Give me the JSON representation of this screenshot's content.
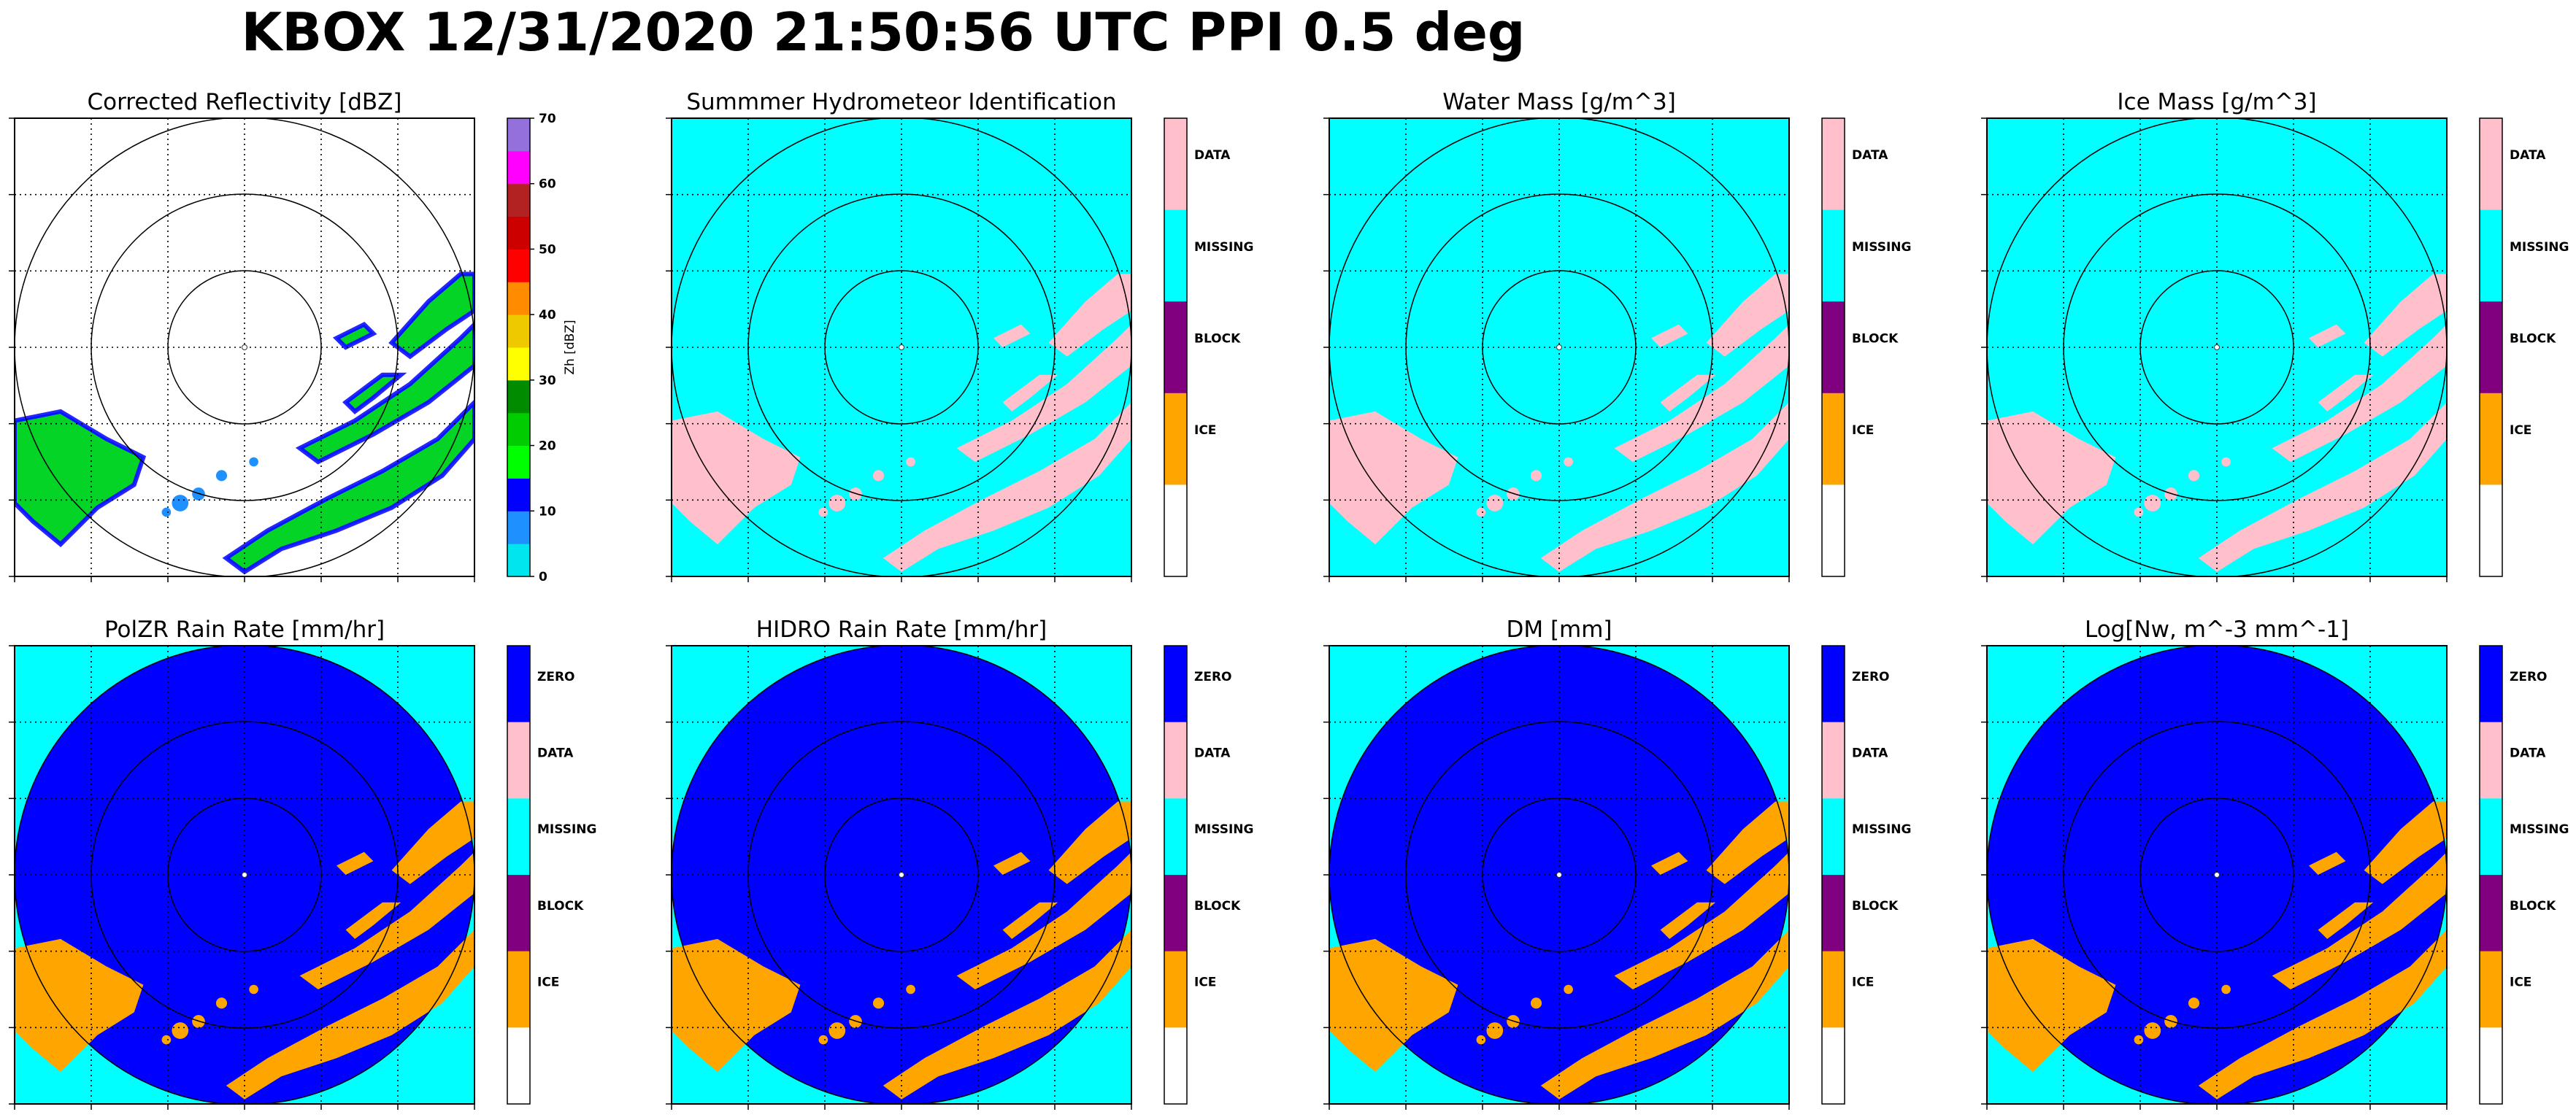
{
  "title": "KBOX 12/31/2020 21:50:56 UTC PPI 0.5 deg",
  "colors": {
    "missing": "#00ffff",
    "data": "#ffc0cb",
    "block": "#800080",
    "ice": "#ffa500",
    "zero": "#0000ff",
    "white": "#ffffff"
  },
  "chart_data": [
    {
      "type": "heatmap",
      "panel": "reflectivity",
      "title": "Corrected Reflectivity [dBZ]",
      "colorbar": {
        "kind": "continuous",
        "ylabel": "Zh [dBZ]",
        "ticks": [
          "0",
          "10",
          "20",
          "30",
          "40",
          "50",
          "60",
          "70"
        ],
        "range": [
          0,
          70
        ],
        "colors": [
          "#00e5ee",
          "#1e90ff",
          "#0000ff",
          "#00ff00",
          "#00cd00",
          "#008b00",
          "#ffff00",
          "#eec900",
          "#ff8c00",
          "#ff0000",
          "#cd0000",
          "#b22222",
          "#ff00ff",
          "#9370db"
        ]
      }
    },
    {
      "type": "heatmap",
      "panel": "hid",
      "title": "Summmer Hydrometeor Identification",
      "colorbar": {
        "kind": "categorical",
        "categories": [
          "DATA",
          "MISSING",
          "BLOCK",
          "ICE"
        ],
        "colors": [
          "#ffc0cb",
          "#00ffff",
          "#800080",
          "#ffa500",
          "#ffffff"
        ]
      }
    },
    {
      "type": "heatmap",
      "panel": "water-mass",
      "title": "Water Mass [g/m^3]",
      "colorbar": {
        "kind": "categorical",
        "categories": [
          "DATA",
          "MISSING",
          "BLOCK",
          "ICE"
        ],
        "colors": [
          "#ffc0cb",
          "#00ffff",
          "#800080",
          "#ffa500",
          "#ffffff"
        ]
      }
    },
    {
      "type": "heatmap",
      "panel": "ice-mass",
      "title": "Ice Mass [g/m^3]",
      "colorbar": {
        "kind": "categorical",
        "categories": [
          "DATA",
          "MISSING",
          "BLOCK",
          "ICE"
        ],
        "colors": [
          "#ffc0cb",
          "#00ffff",
          "#800080",
          "#ffa500",
          "#ffffff"
        ]
      }
    },
    {
      "type": "heatmap",
      "panel": "polzr-rain-rate",
      "title": "PolZR Rain Rate [mm/hr]",
      "colorbar": {
        "kind": "categorical",
        "categories": [
          "ZERO",
          "DATA",
          "MISSING",
          "BLOCK",
          "ICE"
        ],
        "colors": [
          "#0000ff",
          "#ffc0cb",
          "#00ffff",
          "#800080",
          "#ffa500",
          "#ffffff"
        ]
      }
    },
    {
      "type": "heatmap",
      "panel": "hidro-rain-rate",
      "title": "HIDRO Rain Rate [mm/hr]",
      "colorbar": {
        "kind": "categorical",
        "categories": [
          "ZERO",
          "DATA",
          "MISSING",
          "BLOCK",
          "ICE"
        ],
        "colors": [
          "#0000ff",
          "#ffc0cb",
          "#00ffff",
          "#800080",
          "#ffa500",
          "#ffffff"
        ]
      }
    },
    {
      "type": "heatmap",
      "panel": "dm",
      "title": "DM [mm]",
      "colorbar": {
        "kind": "categorical",
        "categories": [
          "ZERO",
          "DATA",
          "MISSING",
          "BLOCK",
          "ICE"
        ],
        "colors": [
          "#0000ff",
          "#ffc0cb",
          "#00ffff",
          "#800080",
          "#ffa500",
          "#ffffff"
        ]
      }
    },
    {
      "type": "heatmap",
      "panel": "log-nw",
      "title": "Log[Nw, m^-3 mm^-1]",
      "colorbar": {
        "kind": "categorical",
        "categories": [
          "ZERO",
          "DATA",
          "MISSING",
          "BLOCK",
          "ICE"
        ],
        "colors": [
          "#0000ff",
          "#ffc0cb",
          "#00ffff",
          "#800080",
          "#ffa500",
          "#ffffff"
        ]
      }
    }
  ]
}
